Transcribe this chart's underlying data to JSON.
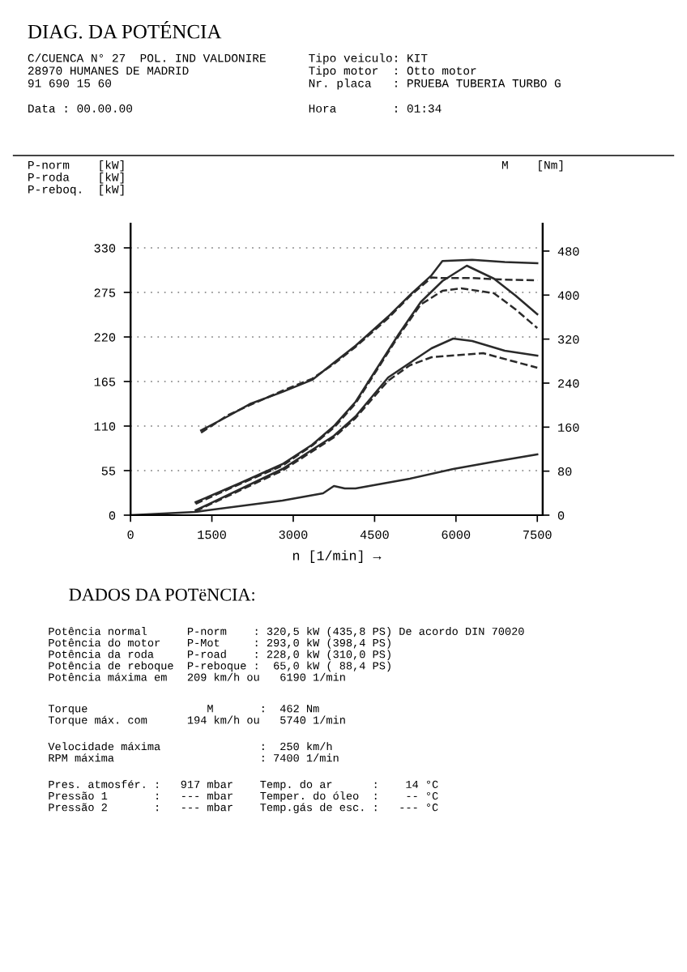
{
  "chart_data": {
    "type": "line",
    "title": "DIAG. DA POTÉNCIA",
    "subtitle": "C/CUENCA N° 27  POL. IND VALDONIRE      Tipo veiculo: KIT\n28970 HUMANES DE MADRID                 Tipo motor  : Otto motor\n91 690 15 60                            Nr. placa   : PRUEBA TUBERIA TURBO G\n\nData : 00.00.00                         Hora        : 01:34",
    "ylabel": "P-norm    [kW]\nP-roda    [kW]\nP-reboq.  [kW]",
    "y2label": "M    [Nm]",
    "xlabel": "n [1/min] →",
    "xlim": [
      0,
      7600
    ],
    "xticks": [
      0,
      1500,
      3000,
      4500,
      6000,
      7500
    ],
    "ylim": [
      0,
      360
    ],
    "yticks": [
      0,
      55,
      110,
      165,
      220,
      275,
      330
    ],
    "y2lim": [
      0,
      530
    ],
    "y2ticks": [
      0,
      80,
      160,
      240,
      320,
      400,
      480
    ],
    "grid": "y",
    "series": [
      {
        "color": "#2a2a2a",
        "line_style": "solid",
        "axis": "y2",
        "x": [
          1300,
          1800,
          2200,
          2800,
          3350,
          3750,
          4150,
          4750,
          5150,
          5550,
          5750,
          6300,
          6900,
          7500
        ],
        "values": [
          154,
          180,
          202,
          224,
          246,
          277,
          308,
          361,
          400,
          436,
          462,
          464,
          460,
          458
        ]
      },
      {
        "color": "#2a2a2a",
        "line_style": "dashed",
        "axis": "y2",
        "x": [
          1300,
          1800,
          2200,
          2800,
          3350,
          3750,
          4150,
          4750,
          5150,
          5550,
          5750,
          6300,
          6900,
          7500
        ],
        "values": [
          150,
          182,
          200,
          226,
          248,
          275,
          306,
          358,
          398,
          432,
          431,
          431,
          428,
          427
        ]
      },
      {
        "color": "#2a2a2a",
        "line_style": "solid",
        "x": [
          1200,
          2000,
          2800,
          3350,
          3750,
          4150,
          4550,
          4950,
          5350,
          5750,
          6200,
          6700,
          7100,
          7500
        ],
        "values": [
          16,
          39,
          63,
          87,
          110,
          140,
          182,
          224,
          263,
          289,
          308,
          292,
          271,
          248
        ]
      },
      {
        "color": "#2a2a2a",
        "line_style": "dashed",
        "x": [
          1200,
          2000,
          2800,
          3350,
          3750,
          4150,
          4550,
          4950,
          5350,
          5750,
          6100,
          6700,
          7100,
          7500
        ],
        "values": [
          14,
          38,
          61,
          86,
          108,
          138,
          180,
          222,
          260,
          277,
          280,
          274,
          254,
          231
        ]
      },
      {
        "color": "#2a2a2a",
        "line_style": "solid",
        "x": [
          1200,
          2800,
          3750,
          4150,
          4750,
          5150,
          5550,
          5950,
          6300,
          6900,
          7500
        ],
        "values": [
          6,
          57,
          98,
          122,
          170,
          188,
          206,
          218,
          215,
          203,
          197
        ]
      },
      {
        "color": "#2a2a2a",
        "line_style": "dashed",
        "x": [
          1200,
          2800,
          3750,
          4150,
          4750,
          5150,
          5550,
          6500,
          7500
        ],
        "values": [
          5,
          55,
          96,
          120,
          166,
          185,
          195,
          200,
          182
        ]
      },
      {
        "color": "#2a2a2a",
        "line_style": "solid",
        "x": [
          0,
          1200,
          2800,
          3550,
          3750,
          3950,
          4150,
          5150,
          5950,
          6700,
          7500
        ],
        "values": [
          0,
          4,
          18,
          27,
          36,
          33,
          33,
          45,
          57,
          66,
          75
        ]
      }
    ],
    "annotations": [
      "DADOS DA POTëNCIA:",
      "Potência normal      P-norm    : 320,5 kW (435,8 PS) De acordo DIN 70020\nPotência do motor    P-Mot     : 293,0 kW (398,4 PS)\nPotência da roda     P-road    : 228,0 kW (310,0 PS)\nPotência de reboque  P-reboque :  65,0 kW ( 88,4 PS)\nPotência máxima em   209 km/h ou   6190 1/min",
      "Torque                  M       :  462 Nm\nTorque máx. com      194 km/h ou   5740 1/min",
      "Velocidade máxima               :  250 km/h\nRPM máxima                      : 7400 1/min",
      "Pres. atmosfér. :   917 mbar    Temp. do ar      :    14 °C\nPressão 1       :   --- mbar    Temper. do óleo  :    -- °C\nPressão 2       :   --- mbar    Temp.gás de esc. :   --- °C"
    ]
  }
}
